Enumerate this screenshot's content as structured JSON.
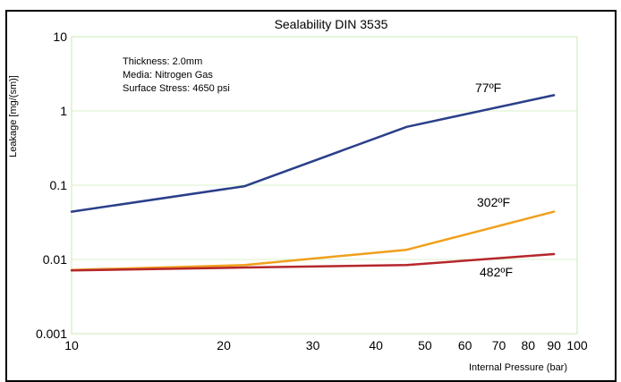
{
  "header": {
    "clipped_text": ""
  },
  "chart_data": {
    "type": "line",
    "title": "Sealability DIN 3535",
    "xlabel": "Internal Pressure (bar)",
    "ylabel": "Leakage [mg/(sm)]",
    "x_scale": "log",
    "y_scale": "log",
    "xlim": [
      10,
      100
    ],
    "ylim": [
      0.001,
      10
    ],
    "x_ticks": [
      10,
      20,
      30,
      40,
      50,
      60,
      70,
      80,
      90,
      100
    ],
    "x_tick_labels": [
      "10",
      "20",
      "30",
      "40",
      "50",
      "60",
      "70",
      "80",
      "90",
      "100"
    ],
    "y_ticks": [
      0.001,
      0.01,
      0.1,
      1,
      10
    ],
    "y_tick_labels": [
      "0.001",
      "0.01",
      "0.1",
      "1",
      "10"
    ],
    "grid": true,
    "legend": "inline-labels",
    "annotations": [
      "Thickness: 2.0mm",
      "Media: Nitrogen Gas",
      "Surface Stress: 4650 psi"
    ],
    "series": [
      {
        "name": "77ºF",
        "color": "#2b3f8a",
        "x": [
          10,
          22,
          46,
          90
        ],
        "y": [
          0.044,
          0.097,
          0.61,
          1.63
        ]
      },
      {
        "name": "302ºF",
        "color": "#f0a01c",
        "x": [
          10,
          22,
          46,
          90
        ],
        "y": [
          0.0072,
          0.0084,
          0.0135,
          0.044
        ]
      },
      {
        "name": "482ºF",
        "color": "#b5272b",
        "x": [
          10,
          22,
          46,
          90
        ],
        "y": [
          0.0071,
          0.0078,
          0.0084,
          0.0118
        ]
      }
    ],
    "colors": {
      "frame": "#000000",
      "grid": "#d8f0c8",
      "plot_border": "#c8e8b4",
      "background": "#ffffff"
    }
  }
}
